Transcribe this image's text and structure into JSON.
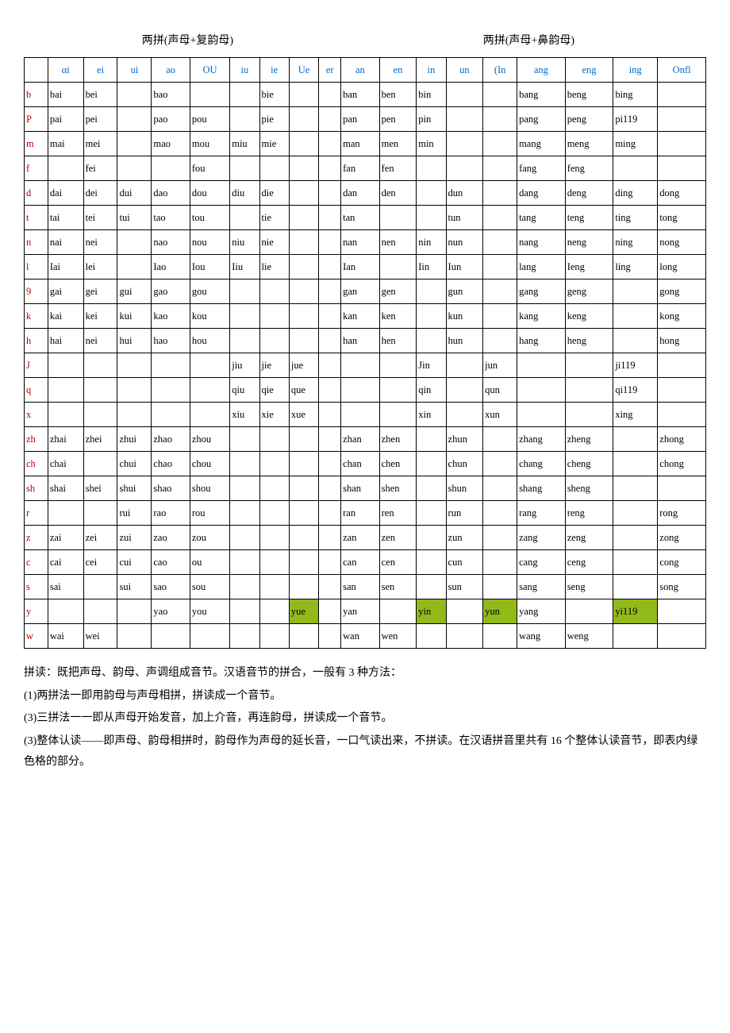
{
  "title_left": "两拼(声母+复韵母)",
  "title_right": "两拼(声母+鼻韵母)",
  "headers": [
    "",
    "αi",
    "ei",
    "ui",
    "ao",
    "OU",
    "iu",
    "ie",
    "Ue",
    "er",
    "an",
    "en",
    "in",
    "un",
    "(In",
    "ang",
    "eng",
    "ing",
    "Onfl"
  ],
  "rows": [
    {
      "init": "b",
      "cells": [
        "bai",
        "bei",
        "",
        "bao",
        "",
        "",
        "bie",
        "",
        "",
        "ban",
        "ben",
        "bin",
        "",
        "",
        "bang",
        "beng",
        "bing",
        ""
      ]
    },
    {
      "init": "P",
      "cells": [
        "pai",
        "pei",
        "",
        "pao",
        "pou",
        "",
        "pie",
        "",
        "",
        "pan",
        "pen",
        "pin",
        "",
        "",
        "pang",
        "peng",
        "pi119",
        ""
      ]
    },
    {
      "init": "m",
      "cells": [
        "mai",
        "mei",
        "",
        "mao",
        "mou",
        "miu",
        "mie",
        "",
        "",
        "man",
        "men",
        "min",
        "",
        "",
        "mang",
        "meng",
        "ming",
        ""
      ]
    },
    {
      "init": "f",
      "cells": [
        "",
        "fei",
        "",
        "",
        "fou",
        "",
        "",
        "",
        "",
        "fan",
        "fen",
        "",
        "",
        "",
        "fang",
        "feng",
        "",
        ""
      ]
    },
    {
      "init": "d",
      "cells": [
        "dai",
        "dei",
        "dui",
        "dao",
        "dou",
        "diu",
        "die",
        "",
        "",
        "dan",
        "den",
        "",
        "dun",
        "",
        "dang",
        "deng",
        "ding",
        "dong"
      ]
    },
    {
      "init": "t",
      "cells": [
        "tai",
        "tei",
        "tui",
        "tao",
        "tou",
        "",
        "tie",
        "",
        "",
        "tan",
        "",
        "",
        "tun",
        "",
        "tang",
        "teng",
        "ting",
        "tong"
      ]
    },
    {
      "init": "n",
      "cells": [
        "nai",
        "nei",
        "",
        "nao",
        "nou",
        "niu",
        "nie",
        "",
        "",
        "nan",
        "nen",
        "nin",
        "nun",
        "",
        "nang",
        "neng",
        "ning",
        "nong"
      ]
    },
    {
      "init": "l",
      "cells": [
        "Iai",
        "lei",
        "",
        "Iao",
        "Iou",
        "Iiu",
        "lie",
        "",
        "",
        "Ian",
        "",
        "Iin",
        "Iun",
        "",
        "lang",
        "Ieng",
        "ling",
        "long"
      ]
    },
    {
      "init": "9",
      "cells": [
        "gai",
        "gei",
        "gui",
        "gao",
        "gou",
        "",
        "",
        "",
        "",
        "gan",
        "gen",
        "",
        "gun",
        "",
        "gang",
        "geng",
        "",
        "gong"
      ]
    },
    {
      "init": "k",
      "cells": [
        "kai",
        "kei",
        "kui",
        "kao",
        "kou",
        "",
        "",
        "",
        "",
        "kan",
        "ken",
        "",
        "kun",
        "",
        "kang",
        "keng",
        "",
        "kong"
      ]
    },
    {
      "init": "h",
      "cells": [
        "hai",
        "nei",
        "hui",
        "hao",
        "hou",
        "",
        "",
        "",
        "",
        "han",
        "hen",
        "",
        "hun",
        "",
        "hang",
        "heng",
        "",
        "hong"
      ]
    },
    {
      "init": "J",
      "cells": [
        "",
        "",
        "",
        "",
        "",
        "jiu",
        "jie",
        "jue",
        "",
        "",
        "",
        "Jin",
        "",
        "jun",
        "",
        "",
        "ji119",
        ""
      ]
    },
    {
      "init": "q",
      "cells": [
        "",
        "",
        "",
        "",
        "",
        "qiu",
        "qie",
        "que",
        "",
        "",
        "",
        "qin",
        "",
        "qun",
        "",
        "",
        "qi119",
        ""
      ]
    },
    {
      "init": "x",
      "cells": [
        "",
        "",
        "",
        "",
        "",
        "xiu",
        "xie",
        "xue",
        "",
        "",
        "",
        "xin",
        "",
        "xun",
        "",
        "",
        "xing",
        ""
      ]
    },
    {
      "init": "zh",
      "cells": [
        "zhai",
        "zhei",
        "zhui",
        "zhao",
        "zhou",
        "",
        "",
        "",
        "",
        "zhan",
        "zhen",
        "",
        "zhun",
        "",
        "zhang",
        "zheng",
        "",
        "zhong"
      ]
    },
    {
      "init": "ch",
      "cells": [
        "chai",
        "",
        "chui",
        "chao",
        "chou",
        "",
        "",
        "",
        "",
        "chan",
        "chen",
        "",
        "chun",
        "",
        "chang",
        "cheng",
        "",
        "chong"
      ]
    },
    {
      "init": "sh",
      "cells": [
        "shai",
        "shei",
        "shui",
        "shao",
        "shou",
        "",
        "",
        "",
        "",
        "shan",
        "shen",
        "",
        "shun",
        "",
        "shang",
        "sheng",
        "",
        ""
      ]
    },
    {
      "init": "r",
      "cells": [
        "",
        "",
        "rui",
        "rao",
        "rou",
        "",
        "",
        "",
        "",
        "ran",
        "ren",
        "",
        "run",
        "",
        "rang",
        "reng",
        "",
        "rong"
      ]
    },
    {
      "init": "z",
      "cells": [
        "zai",
        "zei",
        "zui",
        "zao",
        "zou",
        "",
        "",
        "",
        "",
        "zan",
        "zen",
        "",
        "zun",
        "",
        "zang",
        "zeng",
        "",
        "zong"
      ]
    },
    {
      "init": "c",
      "cells": [
        "cai",
        "cei",
        "cui",
        "cao",
        "ou",
        "",
        "",
        "",
        "",
        "can",
        "cen",
        "",
        "cun",
        "",
        "cang",
        "ceng",
        "",
        "cong"
      ]
    },
    {
      "init": "s",
      "cells": [
        "sai",
        "",
        "sui",
        "sao",
        "sou",
        "",
        "",
        "",
        "",
        "san",
        "sen",
        "",
        "sun",
        "",
        "sang",
        "seng",
        "",
        "song"
      ]
    },
    {
      "init": "y",
      "cells": [
        "",
        "",
        "",
        "yao",
        "you",
        "",
        "",
        "yue",
        "",
        "yan",
        "",
        "yin",
        "",
        "yun",
        "yang",
        "",
        "yi119",
        ""
      ],
      "hl": [
        7,
        11,
        13,
        16
      ]
    },
    {
      "init": "w",
      "cells": [
        "wai",
        "wei",
        "",
        "",
        "",
        "",
        "",
        "",
        "",
        "wan",
        "wen",
        "",
        "",
        "",
        "wang",
        "weng",
        "",
        ""
      ]
    }
  ],
  "notes": [
    "拼读：既把声母、韵母、声调组成音节。汉语音节的拼合，一般有 3 种方法：",
    "(1)两拼法一即用韵母与声母相拼，拼读成一个音节。",
    "(3)三拼法一一即从声母开始发音，加上介音，再连韵母，拼读成一个音节。",
    "(3)整体认读——即声母、韵母相拼时，韵母作为声母的延长音，一口气读出来，不拼读。在汉语拼音里共有 16 个整体认读音节，即表内绿色格的部分。"
  ]
}
